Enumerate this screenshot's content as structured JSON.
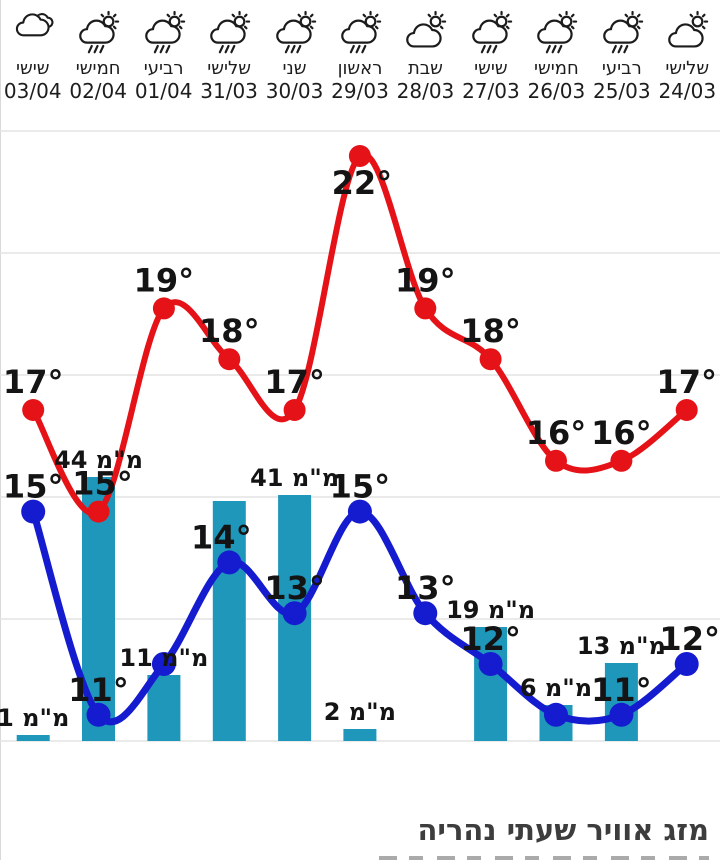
{
  "footer": {
    "location_title": "מזג אוויר שעתי נהריה"
  },
  "header": {
    "days_order": "left-to-right as displayed (newest date at left)",
    "days": [
      {
        "weekday": "שישי",
        "date": "03/04",
        "icon": "clouds"
      },
      {
        "weekday": "חמישי",
        "date": "02/04",
        "icon": "rain-sun"
      },
      {
        "weekday": "רביעי",
        "date": "01/04",
        "icon": "rain-sun"
      },
      {
        "weekday": "שלישי",
        "date": "31/03",
        "icon": "rain-sun"
      },
      {
        "weekday": "שני",
        "date": "30/03",
        "icon": "rain-sun"
      },
      {
        "weekday": "ראשון",
        "date": "29/03",
        "icon": "rain-sun"
      },
      {
        "weekday": "שבת",
        "date": "28/03",
        "icon": "cloud-sun"
      },
      {
        "weekday": "שישי",
        "date": "27/03",
        "icon": "rain-sun"
      },
      {
        "weekday": "חמישי",
        "date": "26/03",
        "icon": "rain-sun"
      },
      {
        "weekday": "רביעי",
        "date": "25/03",
        "icon": "rain-sun"
      },
      {
        "weekday": "שלישי",
        "date": "24/03",
        "icon": "cloud-sun"
      }
    ]
  },
  "chart_data": {
    "type": "line+bar",
    "categories": [
      "03/04",
      "02/04",
      "01/04",
      "31/03",
      "30/03",
      "29/03",
      "28/03",
      "27/03",
      "26/03",
      "25/03",
      "24/03"
    ],
    "degree_suffix": "°",
    "grid": "horizontal gridlines, no axis labels",
    "series": [
      {
        "name": "high-temp",
        "type": "line",
        "color": "#e51218",
        "values": [
          17,
          15,
          19,
          18,
          17,
          22,
          19,
          18,
          16,
          16,
          17
        ],
        "labels_visible": [
          true,
          true,
          true,
          true,
          true,
          true,
          true,
          true,
          true,
          true,
          true
        ]
      },
      {
        "name": "low-temp",
        "type": "line",
        "color": "#151bce",
        "values": [
          15,
          11,
          12,
          14,
          13,
          15,
          13,
          12,
          11,
          11,
          12
        ],
        "labels_visible": [
          true,
          true,
          false,
          true,
          true,
          true,
          true,
          true,
          false,
          true,
          true
        ]
      },
      {
        "name": "precipitation",
        "type": "bar",
        "color": "#1e97ba",
        "unit": "מ\"מ",
        "values": [
          1,
          44,
          11,
          40,
          41,
          2,
          0,
          19,
          6,
          13,
          0
        ],
        "labels_visible": [
          true,
          true,
          true,
          false,
          true,
          true,
          false,
          true,
          true,
          true,
          false
        ]
      }
    ],
    "colors": {
      "grid": "#e3e3e3",
      "value_label": "#141414",
      "title": "#3d3d3d"
    }
  }
}
